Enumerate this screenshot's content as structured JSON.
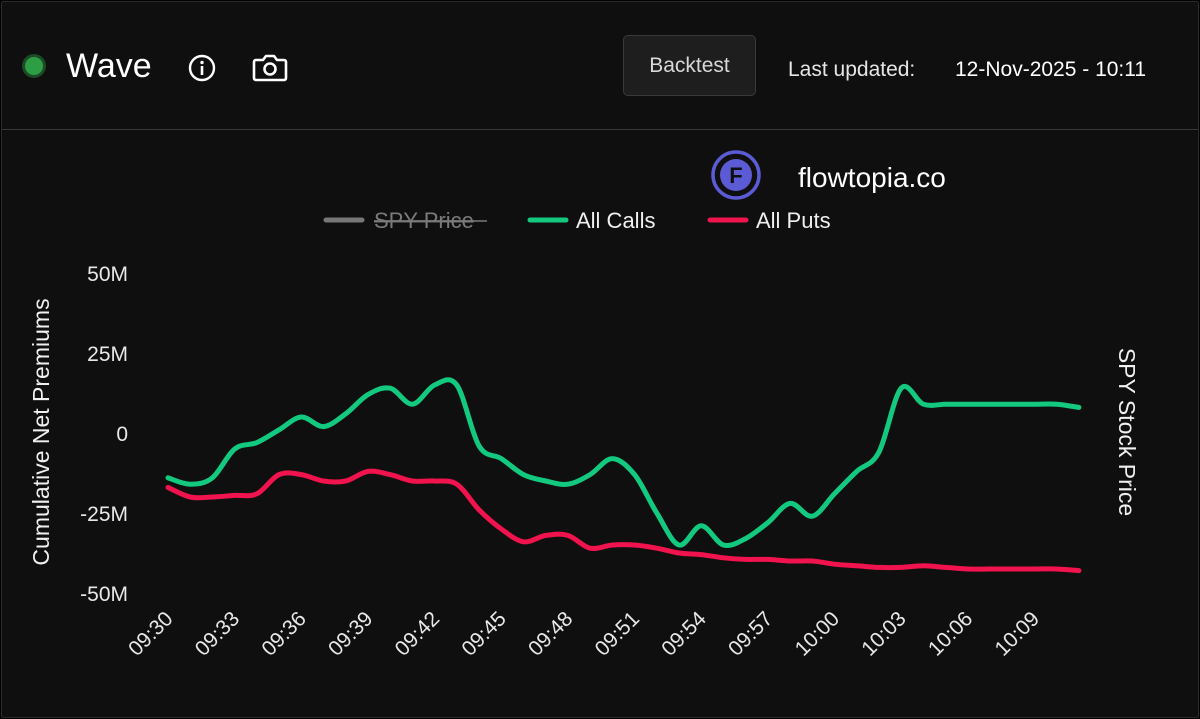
{
  "header": {
    "title": "Wave",
    "status_color": "#2e9e44",
    "info_icon": "info-icon",
    "camera_icon": "camera-icon",
    "backtest_label": "Backtest",
    "last_updated_label": "Last updated:",
    "last_updated_value": "12-Nov-2025 - 10:11"
  },
  "watermark": {
    "text": "flowtopia.co",
    "logo_letter": "F",
    "logo_color": "#5b5bd6"
  },
  "chart_data": {
    "type": "line",
    "ylabel": "Cumulative Net Premiums",
    "y2label": "SPY Stock Price",
    "ylim": [
      -50,
      50
    ],
    "yticks": [
      50,
      25,
      0,
      -25,
      -50
    ],
    "ytick_labels": [
      "50M",
      "25M",
      "0",
      "-25M",
      "-50M"
    ],
    "xlim": [
      0,
      41.5
    ],
    "xticks": [
      0,
      3,
      6,
      9,
      12,
      15,
      18,
      21,
      24,
      27,
      30,
      33,
      36,
      39
    ],
    "xtick_labels": [
      "09:30",
      "09:33",
      "09:36",
      "09:39",
      "09:42",
      "09:45",
      "09:48",
      "09:51",
      "09:54",
      "09:57",
      "10:00",
      "10:03",
      "10:06",
      "10:09"
    ],
    "grid": false,
    "legend": "top-center",
    "series": [
      {
        "name": "SPY Price",
        "color": "#777777",
        "hidden": true,
        "x": [],
        "values": []
      },
      {
        "name": "All Calls",
        "color": "#12c97f",
        "x": [
          0,
          1,
          2,
          3,
          4,
          5,
          6,
          7,
          8,
          9,
          10,
          11,
          12,
          13,
          14,
          15,
          16,
          17,
          18,
          19,
          20,
          21,
          22,
          23,
          24,
          25,
          26,
          27,
          28,
          29,
          30,
          31,
          32,
          33,
          34,
          35,
          36,
          37,
          38,
          39,
          40,
          41
        ],
        "values": [
          -14,
          -16,
          -14,
          -5,
          -3,
          1,
          5,
          2,
          6,
          12,
          14,
          9,
          15,
          15,
          -4,
          -8,
          -13,
          -15,
          -16,
          -13,
          -8,
          -13,
          -25,
          -35,
          -29,
          -35,
          -33,
          -28,
          -22,
          -26,
          -19,
          -12,
          -6,
          14,
          9,
          9,
          9,
          9,
          9,
          9,
          9,
          8
        ]
      },
      {
        "name": "All Puts",
        "color": "#f0134d",
        "x": [
          0,
          1,
          2,
          3,
          4,
          5,
          6,
          7,
          8,
          9,
          10,
          11,
          12,
          13,
          14,
          15,
          16,
          17,
          18,
          19,
          20,
          21,
          22,
          23,
          24,
          25,
          26,
          27,
          28,
          29,
          30,
          31,
          32,
          33,
          34,
          35,
          36,
          37,
          38,
          39,
          40,
          41
        ],
        "values": [
          -17,
          -20,
          -20,
          -19.5,
          -19,
          -13,
          -13,
          -15,
          -15,
          -12,
          -13,
          -15,
          -15,
          -16,
          -24,
          -30,
          -34,
          -32,
          -32,
          -36,
          -35,
          -35,
          -36,
          -37.5,
          -38,
          -39,
          -39.5,
          -39.5,
          -40,
          -40,
          -41,
          -41.5,
          -42,
          -42,
          -41.5,
          -42,
          -42.5,
          -42.5,
          -42.5,
          -42.5,
          -42.5,
          -43
        ]
      }
    ]
  }
}
